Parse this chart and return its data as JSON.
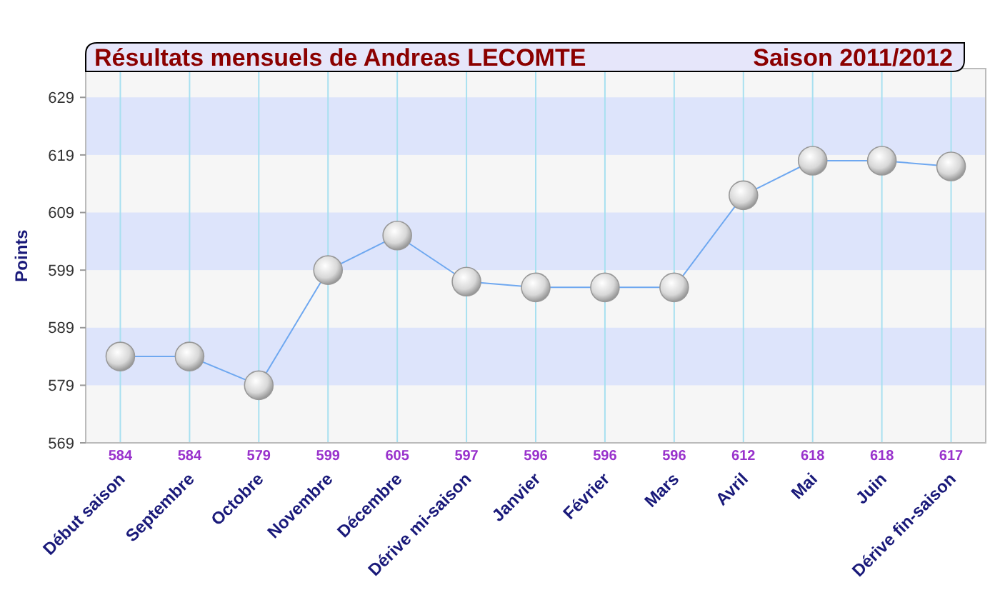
{
  "chart_data": {
    "type": "line",
    "title": "Résultats mensuels de  Andreas LECOMTE",
    "subtitle": "Saison 2011/2012",
    "ylabel": "Points",
    "categories": [
      "Début saison",
      "Septembre",
      "Octobre",
      "Novembre",
      "Décembre",
      "Dérive mi-saison",
      "Janvier",
      "Février",
      "Mars",
      "Avril",
      "Mai",
      "Juin",
      "Dérive fin-saison"
    ],
    "series": [
      {
        "color": "#6fa8f0",
        "values": [
          584,
          584,
          579,
          599,
          605,
          597,
          596,
          596,
          596,
          612,
          618,
          618,
          617
        ]
      }
    ],
    "ylim": [
      569,
      634
    ],
    "yticks": [
      569,
      579,
      589,
      599,
      609,
      619,
      629
    ],
    "bands": [
      {
        "axis": "y",
        "from": 579,
        "to": 589,
        "color": "#dde4fb"
      },
      {
        "axis": "y",
        "from": 599,
        "to": 609,
        "color": "#dde4fb"
      },
      {
        "axis": "y",
        "from": 619,
        "to": 629,
        "color": "#dde4fb"
      }
    ],
    "grid": "x",
    "marker": "circle",
    "line_style": "solid",
    "data_labels": true
  }
}
